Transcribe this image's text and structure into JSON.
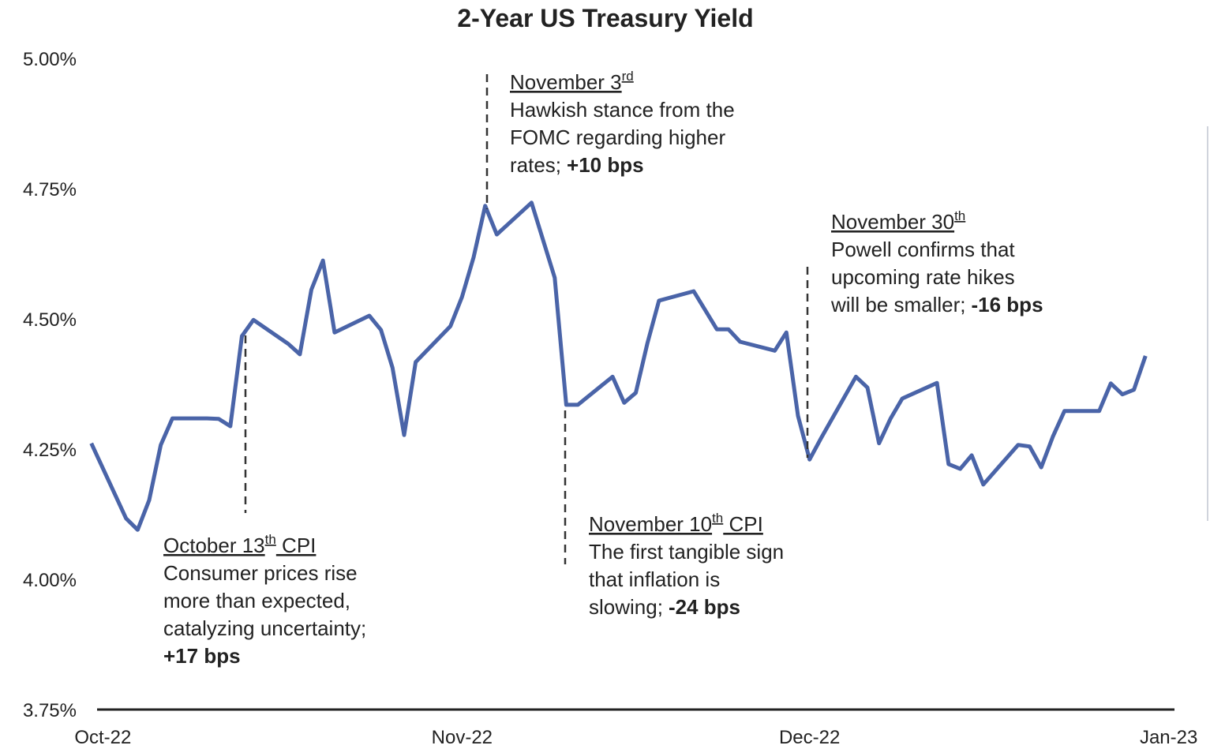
{
  "chart_data": {
    "type": "line",
    "title": "2-Year US Treasury Yield",
    "x": [
      -1,
      2,
      3,
      4,
      5,
      6,
      9,
      10,
      11,
      12,
      13,
      16,
      17,
      18,
      19,
      20,
      23,
      24,
      25,
      26,
      27,
      30,
      31,
      32,
      33,
      34,
      37,
      39,
      40,
      41,
      44,
      45,
      46,
      47,
      48,
      51,
      53,
      54,
      55,
      58,
      59,
      60,
      61,
      62,
      65,
      66,
      67,
      68,
      69,
      72,
      73,
      74,
      75,
      76,
      79,
      80,
      81,
      82,
      83,
      86,
      87,
      88,
      89,
      90
    ],
    "values": [
      4.261,
      4.117,
      4.095,
      4.152,
      4.258,
      4.309,
      4.309,
      4.308,
      4.294,
      4.467,
      4.498,
      4.452,
      4.432,
      4.556,
      4.612,
      4.474,
      4.506,
      4.479,
      4.406,
      4.277,
      4.417,
      4.486,
      4.542,
      4.618,
      4.717,
      4.662,
      4.723,
      4.579,
      4.335,
      4.335,
      4.389,
      4.339,
      4.358,
      4.453,
      4.535,
      4.553,
      4.48,
      4.48,
      4.456,
      4.439,
      4.474,
      4.314,
      4.23,
      4.271,
      4.389,
      4.368,
      4.261,
      4.309,
      4.347,
      4.377,
      4.221,
      4.212,
      4.238,
      4.182,
      4.258,
      4.255,
      4.215,
      4.274,
      4.323,
      4.323,
      4.376,
      4.355,
      4.364,
      4.429
    ],
    "color": "#4a64a8",
    "xlim": [
      -0.5,
      92.5
    ],
    "xticks": [
      {
        "value": 0,
        "label": "Oct-22"
      },
      {
        "value": 31,
        "label": "Nov-22"
      },
      {
        "value": 61,
        "label": "Dec-22"
      },
      {
        "value": 92,
        "label": "Jan-23"
      }
    ],
    "ylim": [
      3.75,
      5.0
    ],
    "yticks": [
      {
        "value": 3.75,
        "label": "3.75%"
      },
      {
        "value": 4.0,
        "label": "4.00%"
      },
      {
        "value": 4.25,
        "label": "4.25%"
      },
      {
        "value": 4.5,
        "label": "4.50%"
      },
      {
        "value": 4.75,
        "label": "4.75%"
      },
      {
        "value": 5.0,
        "label": "5.00%"
      }
    ],
    "grid": false,
    "annotations": [
      {
        "heading": [
          "October 13",
          "th",
          " CPI"
        ],
        "text": [
          "Consumer prices rise",
          "more than expected,",
          "catalyzing uncertainty;"
        ],
        "change": "+17 bps"
      },
      {
        "heading": [
          "November 3",
          "rd"
        ],
        "text": [
          "Hawkish stance from the",
          "FOMC regarding higher",
          "rates;"
        ],
        "change": "+10 bps"
      },
      {
        "heading": [
          "November 10",
          "th",
          " CPI"
        ],
        "text": [
          "The first tangible sign",
          "that inflation is",
          "slowing;"
        ],
        "change": "-24 bps"
      },
      {
        "heading": [
          "November 30",
          "th"
        ],
        "text": [
          "Powell confirms that",
          "upcoming rate hikes",
          "will be smaller;"
        ],
        "change": "-16 bps"
      }
    ]
  }
}
